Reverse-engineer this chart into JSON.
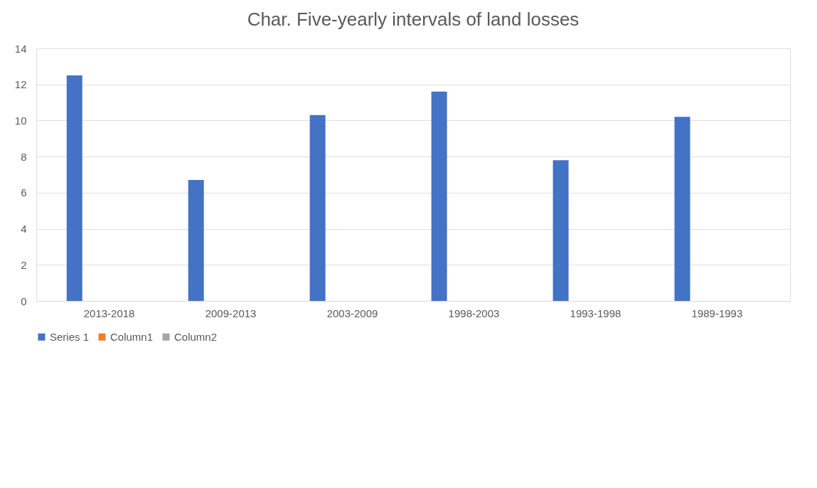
{
  "chart_data": {
    "type": "bar",
    "title": "Char. Five-yearly intervals of land losses",
    "categories": [
      "2013-2018",
      "2009-2013",
      "2003-2009",
      "1998-2003",
      "1993-1998",
      "1989-1993"
    ],
    "series": [
      {
        "name": "Series 1",
        "color": "#4472c4",
        "values": [
          12.5,
          6.7,
          10.3,
          11.6,
          7.8,
          10.2
        ]
      },
      {
        "name": "Column1",
        "color": "#ed7d31",
        "values": [
          null,
          null,
          null,
          null,
          null,
          null
        ]
      },
      {
        "name": "Column2",
        "color": "#a5a5a5",
        "values": [
          null,
          null,
          null,
          null,
          null,
          null
        ]
      }
    ],
    "ylim": [
      0,
      14
    ],
    "yticks": [
      0,
      2,
      4,
      6,
      8,
      10,
      12,
      14
    ],
    "grid": "y",
    "legend": "bottom"
  }
}
